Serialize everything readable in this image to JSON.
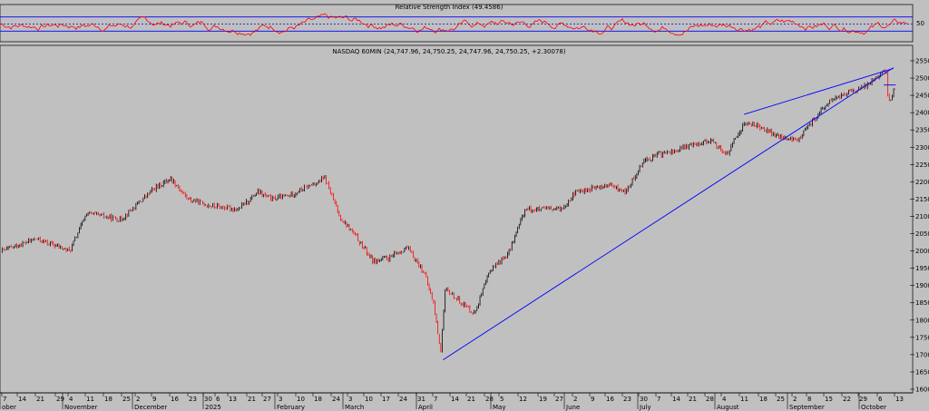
{
  "rsi_panel": {
    "title": "Relative Strength Index (49.4586)",
    "level_label": "50",
    "levels": [
      30,
      50,
      70
    ],
    "line_color": "#ff0000",
    "level_color": "#0000ff"
  },
  "price_panel": {
    "title": "NASDAQ 60MIN (24,747.96, 24,750.25, 24,747.96, 24,750.25, +2.30078)",
    "up_color": "#000000",
    "down_color": "#ff0000",
    "trendline_color": "#0000ff"
  },
  "chart_data": [
    {
      "type": "line",
      "title": "Relative Strength Index (49.4586)",
      "ylim": [
        0,
        100
      ],
      "reference_lines": [
        30,
        50,
        70
      ],
      "last_value": 49.4586
    },
    {
      "type": "candlestick",
      "title": "NASDAQ 60MIN (24,747.96, 24,750.25, 24,747.96, 24,750.25, +2.30078)",
      "ylim": [
        16000,
        25500
      ],
      "y_ticks": [
        16000,
        16500,
        17000,
        17500,
        18000,
        18500,
        19000,
        19500,
        20000,
        20500,
        21000,
        21500,
        22000,
        22500,
        23000,
        23500,
        24000,
        24500,
        25000,
        25500
      ],
      "x_day_ticks": [
        "7",
        "14",
        "21",
        "29",
        "4",
        "11",
        "18",
        "25",
        "2",
        "9",
        "16",
        "23",
        "30",
        "6",
        "13",
        "21",
        "27",
        "3",
        "10",
        "18",
        "24",
        "3",
        "10",
        "17",
        "24",
        "31",
        "7",
        "14",
        "21",
        "28",
        "5",
        "12",
        "19",
        "27",
        "2",
        "9",
        "16",
        "23",
        "30",
        "7",
        "14",
        "21",
        "28",
        "4",
        "11",
        "18",
        "25",
        "2",
        "8",
        "15",
        "22",
        "29",
        "6",
        "13"
      ],
      "x_period_labels": [
        "ober",
        "November",
        "December",
        "2025",
        "February",
        "March",
        "April",
        "May",
        "June",
        "July",
        "August",
        "September",
        "October"
      ],
      "series": [
        {
          "name": "NASDAQ 60MIN",
          "x": [
            "2024-10-07",
            "2024-10-21",
            "2024-11-04",
            "2024-11-11",
            "2024-11-25",
            "2024-12-09",
            "2024-12-16",
            "2024-12-23",
            "2025-01-02",
            "2025-01-13",
            "2025-01-21",
            "2025-01-27",
            "2025-02-03",
            "2025-02-18",
            "2025-02-24",
            "2025-03-03",
            "2025-03-10",
            "2025-03-17",
            "2025-03-24",
            "2025-03-31",
            "2025-04-04",
            "2025-04-07",
            "2025-04-09",
            "2025-04-14",
            "2025-04-21",
            "2025-04-28",
            "2025-05-05",
            "2025-05-12",
            "2025-05-19",
            "2025-05-27",
            "2025-06-02",
            "2025-06-09",
            "2025-06-16",
            "2025-06-23",
            "2025-06-30",
            "2025-07-07",
            "2025-07-14",
            "2025-07-21",
            "2025-07-28",
            "2025-08-04",
            "2025-08-11",
            "2025-08-18",
            "2025-08-25",
            "2025-09-02",
            "2025-09-08",
            "2025-09-15",
            "2025-09-22",
            "2025-09-29",
            "2025-10-06",
            "2025-10-09",
            "2025-10-10",
            "2025-10-13"
          ],
          "values": [
            20000,
            20350,
            20000,
            21100,
            20900,
            21800,
            22100,
            21500,
            21300,
            21200,
            21700,
            21500,
            21600,
            22100,
            21000,
            20400,
            19700,
            19800,
            20100,
            19400,
            18500,
            17100,
            18900,
            18600,
            18200,
            19500,
            19900,
            21200,
            21200,
            21200,
            21700,
            21800,
            21900,
            21700,
            22600,
            22800,
            22900,
            23100,
            23200,
            22800,
            23700,
            23600,
            23300,
            23200,
            23700,
            24300,
            24550,
            24700,
            25100,
            25200,
            24300,
            24750
          ]
        }
      ]
    }
  ]
}
